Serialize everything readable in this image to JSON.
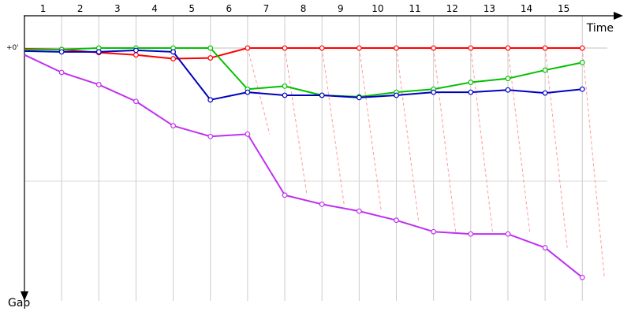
{
  "chart_data": {
    "type": "line",
    "xlabel": "Time",
    "ylabel": "Gap",
    "zero_label": "+0'",
    "laps": [
      "1",
      "2",
      "3",
      "4",
      "5",
      "6",
      "7",
      "8",
      "9",
      "10",
      "11",
      "12",
      "13",
      "14",
      "15"
    ],
    "y_range": [
      0,
      310
    ],
    "grid": true,
    "pit_stop_lines": true,
    "series": [
      {
        "color": "#ff0000",
        "values": [
          1,
          2,
          6,
          9,
          14,
          13,
          0,
          0,
          0,
          0,
          0,
          0,
          0,
          0,
          0,
          0
        ]
      },
      {
        "color": "#00c000",
        "values": [
          2,
          2,
          0,
          0,
          0,
          0,
          54,
          50,
          62,
          64,
          58,
          54,
          45,
          40,
          29,
          19
        ]
      },
      {
        "color": "#0000c0",
        "values": [
          4,
          5,
          5,
          3,
          5,
          68,
          58,
          62,
          62,
          65,
          62,
          58,
          58,
          55,
          59,
          54
        ]
      },
      {
        "color": "#c030f0",
        "values": [
          9,
          32,
          48,
          70,
          102,
          116,
          113,
          193,
          205,
          214,
          226,
          241,
          244,
          244,
          262,
          301
        ]
      }
    ]
  }
}
